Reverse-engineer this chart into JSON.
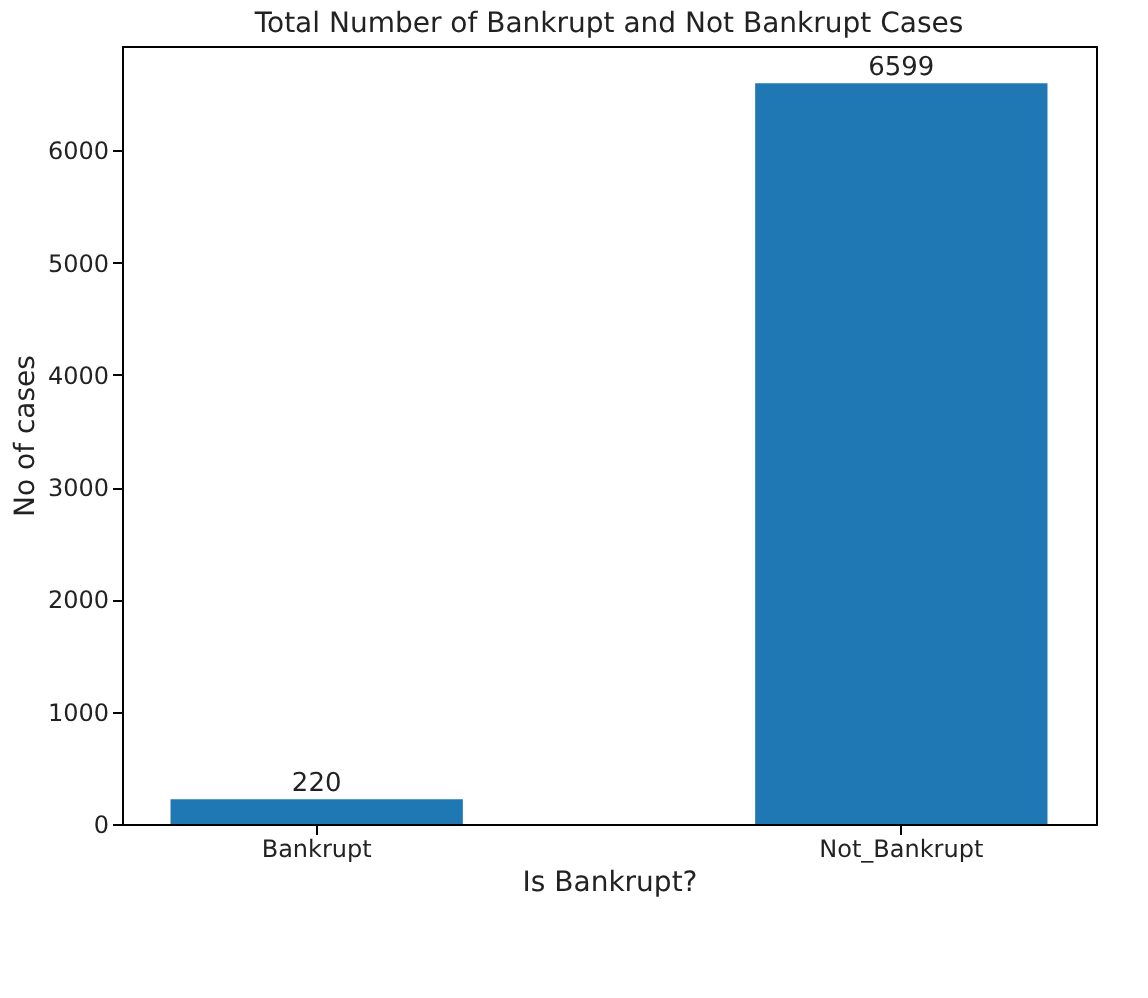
{
  "chart_data": {
    "type": "bar",
    "title": "Total Number of Bankrupt and Not Bankrupt Cases",
    "xlabel": "Is Bankrupt?",
    "ylabel": "No of cases",
    "categories": [
      "Bankrupt",
      "Not_Bankrupt"
    ],
    "values": [
      220,
      6599
    ],
    "color": "#1f77b4",
    "ylim": [
      0,
      6930
    ],
    "yticks": [
      0,
      1000,
      2000,
      3000,
      4000,
      5000,
      6000
    ],
    "data_labels": true,
    "grid": false
  }
}
